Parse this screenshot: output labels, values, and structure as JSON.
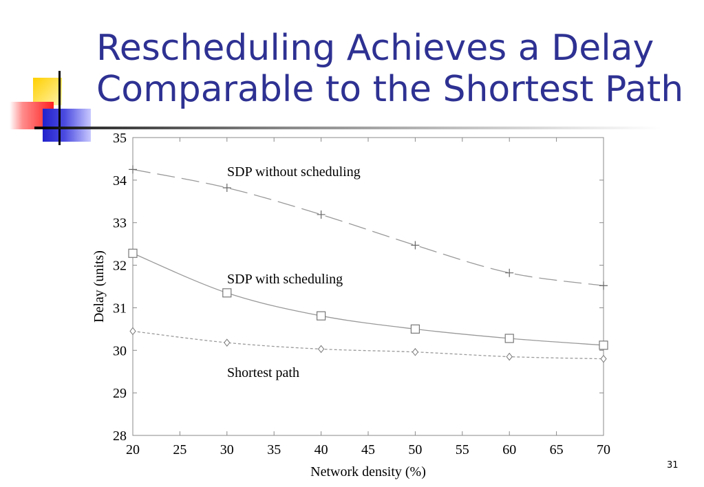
{
  "slide": {
    "title_line1": "Rescheduling Achieves a Delay",
    "title_line2": "Comparable to the Shortest Path",
    "page_number": "31",
    "title_color": "#2e3192"
  },
  "chart_data": {
    "type": "line",
    "title": "",
    "xlabel": "Network density (%)",
    "ylabel": "Delay (units)",
    "xlim": [
      20,
      70
    ],
    "ylim": [
      28,
      35
    ],
    "xticks": [
      20,
      25,
      30,
      35,
      40,
      45,
      50,
      55,
      60,
      65,
      70
    ],
    "yticks": [
      28,
      29,
      30,
      31,
      32,
      33,
      34,
      35
    ],
    "grid": false,
    "legend": "inline labels",
    "series": [
      {
        "name": "SDP without scheduling",
        "line_style": "long-dash",
        "marker": "plus",
        "x": [
          20,
          30,
          40,
          50,
          60,
          70
        ],
        "y": [
          34.25,
          33.82,
          33.19,
          32.47,
          31.82,
          31.52
        ]
      },
      {
        "name": "SDP with scheduling",
        "line_style": "solid",
        "marker": "square",
        "x": [
          20,
          30,
          40,
          50,
          60,
          70
        ],
        "y": [
          32.28,
          31.35,
          30.81,
          30.5,
          30.28,
          30.12
        ]
      },
      {
        "name": "Shortest path",
        "line_style": "short-dash",
        "marker": "diamond",
        "x": [
          20,
          30,
          40,
          50,
          60,
          70
        ],
        "y": [
          30.45,
          30.18,
          30.03,
          29.96,
          29.85,
          29.8
        ]
      }
    ]
  }
}
